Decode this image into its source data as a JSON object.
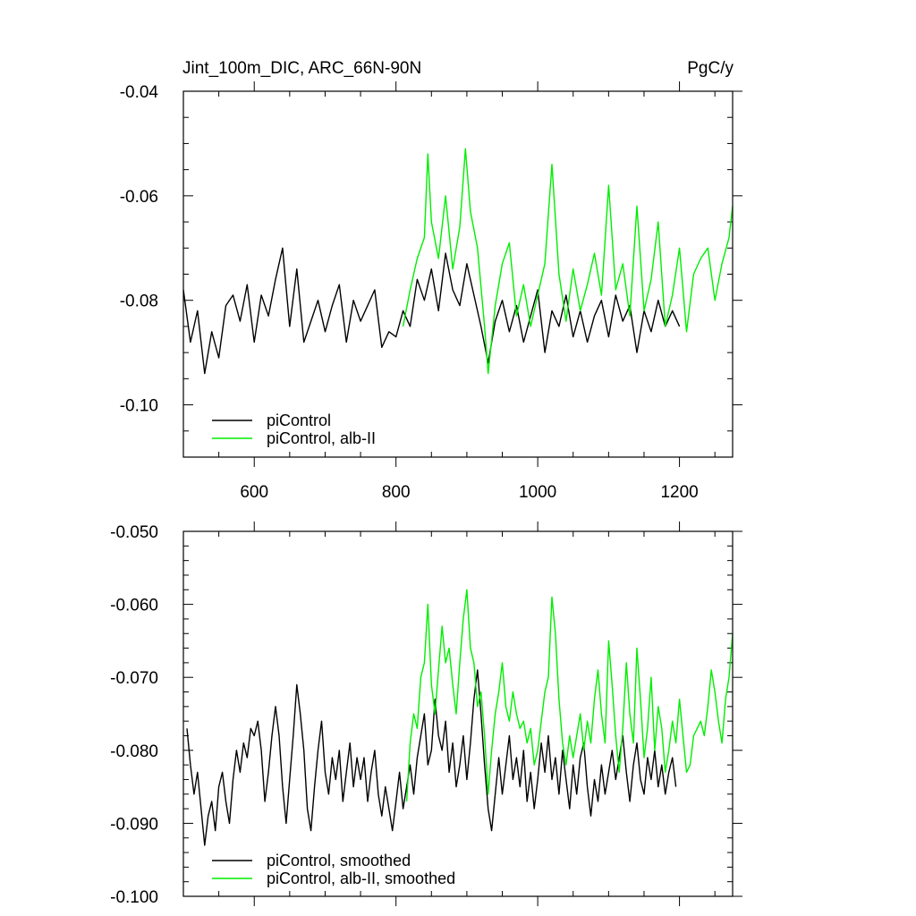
{
  "chart_data": [
    {
      "type": "line",
      "title_left": "Jint_100m_DIC, ARC_66N-90N",
      "title_right": "PgC/y",
      "xlim": [
        500,
        1275
      ],
      "ylim": [
        -0.11,
        -0.04
      ],
      "xticks": [
        600,
        800,
        1000,
        1200
      ],
      "xtick_labels": [
        "600",
        "800",
        "1000",
        "1200"
      ],
      "yticks": [
        -0.1,
        -0.08,
        -0.06,
        -0.04
      ],
      "ytick_labels": [
        "-0.10",
        "-0.08",
        "-0.06",
        "-0.04"
      ],
      "x_minor_step": 50,
      "y_minor_step": 0.005,
      "show_xtick_labels": true,
      "grid": false,
      "legend_position": "bottom-left",
      "series": [
        {
          "name": "piControl",
          "color": "#000000",
          "x": [
            500,
            510,
            520,
            530,
            540,
            550,
            560,
            570,
            580,
            590,
            600,
            610,
            620,
            630,
            640,
            650,
            660,
            670,
            680,
            690,
            700,
            710,
            720,
            730,
            740,
            750,
            760,
            770,
            780,
            790,
            800,
            810,
            820,
            830,
            840,
            850,
            860,
            870,
            880,
            890,
            900,
            910,
            920,
            930,
            940,
            950,
            960,
            970,
            980,
            990,
            1000,
            1010,
            1020,
            1030,
            1040,
            1050,
            1060,
            1070,
            1080,
            1090,
            1100,
            1110,
            1120,
            1130,
            1140,
            1150,
            1160,
            1170,
            1180,
            1190,
            1200
          ],
          "y": [
            -0.078,
            -0.088,
            -0.082,
            -0.094,
            -0.086,
            -0.091,
            -0.081,
            -0.079,
            -0.084,
            -0.077,
            -0.088,
            -0.079,
            -0.083,
            -0.076,
            -0.07,
            -0.085,
            -0.074,
            -0.088,
            -0.084,
            -0.08,
            -0.086,
            -0.081,
            -0.077,
            -0.088,
            -0.08,
            -0.084,
            -0.081,
            -0.078,
            -0.089,
            -0.086,
            -0.087,
            -0.082,
            -0.085,
            -0.076,
            -0.08,
            -0.074,
            -0.082,
            -0.071,
            -0.078,
            -0.081,
            -0.073,
            -0.079,
            -0.085,
            -0.092,
            -0.084,
            -0.08,
            -0.086,
            -0.081,
            -0.088,
            -0.083,
            -0.078,
            -0.09,
            -0.082,
            -0.085,
            -0.079,
            -0.087,
            -0.082,
            -0.088,
            -0.083,
            -0.08,
            -0.087,
            -0.079,
            -0.084,
            -0.081,
            -0.09,
            -0.082,
            -0.086,
            -0.08,
            -0.085,
            -0.082,
            -0.085
          ]
        },
        {
          "name": "piControl, alb-II",
          "color": "#00ee00",
          "x": [
            810,
            820,
            830,
            840,
            845,
            850,
            860,
            870,
            880,
            890,
            898,
            905,
            915,
            925,
            930,
            940,
            950,
            960,
            970,
            980,
            990,
            1000,
            1010,
            1020,
            1030,
            1040,
            1050,
            1060,
            1070,
            1080,
            1090,
            1100,
            1110,
            1120,
            1130,
            1140,
            1150,
            1160,
            1170,
            1180,
            1190,
            1200,
            1210,
            1220,
            1230,
            1240,
            1250,
            1260,
            1270,
            1275
          ],
          "y": [
            -0.085,
            -0.078,
            -0.072,
            -0.068,
            -0.052,
            -0.065,
            -0.072,
            -0.06,
            -0.074,
            -0.066,
            -0.051,
            -0.063,
            -0.07,
            -0.085,
            -0.094,
            -0.081,
            -0.073,
            -0.069,
            -0.083,
            -0.077,
            -0.085,
            -0.079,
            -0.073,
            -0.054,
            -0.075,
            -0.084,
            -0.074,
            -0.082,
            -0.077,
            -0.071,
            -0.079,
            -0.058,
            -0.078,
            -0.073,
            -0.083,
            -0.062,
            -0.082,
            -0.076,
            -0.065,
            -0.085,
            -0.079,
            -0.07,
            -0.086,
            -0.075,
            -0.072,
            -0.07,
            -0.08,
            -0.073,
            -0.068,
            -0.062
          ]
        }
      ]
    },
    {
      "type": "line",
      "xlim": [
        500,
        1275
      ],
      "ylim": [
        -0.1,
        -0.05
      ],
      "xticks": [
        600,
        800,
        1000,
        1200
      ],
      "xtick_labels": [],
      "yticks": [
        -0.1,
        -0.09,
        -0.08,
        -0.07,
        -0.06,
        -0.05
      ],
      "ytick_labels": [
        "-0.100",
        "-0.090",
        "-0.080",
        "-0.070",
        "-0.060",
        "-0.050"
      ],
      "x_minor_step": 50,
      "y_minor_step": 0.002,
      "show_xtick_labels": false,
      "grid": false,
      "legend_position": "bottom-left",
      "series": [
        {
          "name": "piControl, smoothed",
          "color": "#000000",
          "x": [
            505,
            510,
            515,
            520,
            525,
            530,
            535,
            540,
            545,
            550,
            555,
            560,
            565,
            570,
            575,
            580,
            585,
            590,
            595,
            600,
            605,
            610,
            615,
            620,
            625,
            630,
            635,
            640,
            645,
            650,
            655,
            660,
            665,
            670,
            675,
            680,
            685,
            690,
            695,
            700,
            705,
            710,
            715,
            720,
            725,
            730,
            735,
            740,
            745,
            750,
            755,
            760,
            765,
            770,
            775,
            780,
            785,
            790,
            795,
            800,
            805,
            810,
            815,
            820,
            825,
            830,
            835,
            840,
            845,
            850,
            855,
            860,
            865,
            870,
            875,
            880,
            885,
            890,
            895,
            900,
            905,
            910,
            915,
            920,
            925,
            930,
            935,
            940,
            945,
            950,
            955,
            960,
            965,
            970,
            975,
            980,
            985,
            990,
            995,
            1000,
            1005,
            1010,
            1015,
            1020,
            1025,
            1030,
            1035,
            1040,
            1045,
            1050,
            1055,
            1060,
            1065,
            1070,
            1075,
            1080,
            1085,
            1090,
            1095,
            1100,
            1105,
            1110,
            1115,
            1120,
            1125,
            1130,
            1135,
            1140,
            1145,
            1150,
            1155,
            1160,
            1165,
            1170,
            1175,
            1180,
            1185,
            1190,
            1195
          ],
          "y": [
            -0.077,
            -0.082,
            -0.086,
            -0.083,
            -0.088,
            -0.093,
            -0.089,
            -0.087,
            -0.091,
            -0.085,
            -0.083,
            -0.087,
            -0.09,
            -0.084,
            -0.08,
            -0.083,
            -0.079,
            -0.081,
            -0.077,
            -0.078,
            -0.076,
            -0.08,
            -0.087,
            -0.083,
            -0.078,
            -0.074,
            -0.078,
            -0.085,
            -0.09,
            -0.084,
            -0.078,
            -0.071,
            -0.075,
            -0.08,
            -0.088,
            -0.091,
            -0.085,
            -0.08,
            -0.076,
            -0.083,
            -0.086,
            -0.081,
            -0.084,
            -0.08,
            -0.087,
            -0.083,
            -0.079,
            -0.085,
            -0.081,
            -0.084,
            -0.081,
            -0.087,
            -0.083,
            -0.08,
            -0.086,
            -0.089,
            -0.085,
            -0.088,
            -0.091,
            -0.087,
            -0.083,
            -0.088,
            -0.085,
            -0.082,
            -0.086,
            -0.081,
            -0.078,
            -0.075,
            -0.082,
            -0.08,
            -0.073,
            -0.078,
            -0.08,
            -0.076,
            -0.083,
            -0.079,
            -0.085,
            -0.082,
            -0.078,
            -0.084,
            -0.079,
            -0.073,
            -0.069,
            -0.075,
            -0.082,
            -0.088,
            -0.091,
            -0.086,
            -0.081,
            -0.086,
            -0.082,
            -0.078,
            -0.084,
            -0.081,
            -0.085,
            -0.08,
            -0.087,
            -0.083,
            -0.088,
            -0.084,
            -0.079,
            -0.083,
            -0.078,
            -0.084,
            -0.081,
            -0.086,
            -0.08,
            -0.084,
            -0.088,
            -0.082,
            -0.086,
            -0.081,
            -0.079,
            -0.085,
            -0.089,
            -0.084,
            -0.087,
            -0.082,
            -0.086,
            -0.083,
            -0.08,
            -0.084,
            -0.081,
            -0.078,
            -0.083,
            -0.087,
            -0.082,
            -0.079,
            -0.084,
            -0.086,
            -0.081,
            -0.084,
            -0.08,
            -0.085,
            -0.082,
            -0.086,
            -0.083,
            -0.081,
            -0.085
          ]
        },
        {
          "name": "piControl, alb-II, smoothed",
          "color": "#00ee00",
          "x": [
            815,
            820,
            825,
            830,
            835,
            840,
            845,
            850,
            855,
            860,
            865,
            870,
            875,
            880,
            885,
            890,
            895,
            900,
            905,
            910,
            915,
            920,
            925,
            930,
            935,
            940,
            945,
            950,
            955,
            960,
            965,
            970,
            975,
            980,
            985,
            990,
            995,
            1000,
            1005,
            1010,
            1015,
            1020,
            1025,
            1030,
            1035,
            1040,
            1045,
            1050,
            1055,
            1060,
            1065,
            1070,
            1075,
            1080,
            1085,
            1090,
            1095,
            1100,
            1105,
            1110,
            1115,
            1120,
            1125,
            1130,
            1135,
            1140,
            1145,
            1150,
            1155,
            1160,
            1165,
            1170,
            1175,
            1180,
            1185,
            1190,
            1195,
            1200,
            1205,
            1210,
            1215,
            1220,
            1225,
            1230,
            1235,
            1240,
            1245,
            1250,
            1255,
            1260,
            1265,
            1270,
            1275
          ],
          "y": [
            -0.087,
            -0.079,
            -0.075,
            -0.077,
            -0.07,
            -0.068,
            -0.06,
            -0.071,
            -0.075,
            -0.069,
            -0.063,
            -0.068,
            -0.066,
            -0.071,
            -0.075,
            -0.068,
            -0.062,
            -0.058,
            -0.066,
            -0.068,
            -0.074,
            -0.072,
            -0.078,
            -0.086,
            -0.08,
            -0.075,
            -0.072,
            -0.068,
            -0.074,
            -0.076,
            -0.072,
            -0.075,
            -0.077,
            -0.076,
            -0.079,
            -0.077,
            -0.082,
            -0.08,
            -0.076,
            -0.072,
            -0.07,
            -0.059,
            -0.064,
            -0.073,
            -0.079,
            -0.082,
            -0.078,
            -0.081,
            -0.078,
            -0.075,
            -0.08,
            -0.076,
            -0.079,
            -0.073,
            -0.069,
            -0.075,
            -0.079,
            -0.065,
            -0.071,
            -0.078,
            -0.083,
            -0.077,
            -0.068,
            -0.075,
            -0.079,
            -0.066,
            -0.073,
            -0.081,
            -0.077,
            -0.07,
            -0.08,
            -0.074,
            -0.077,
            -0.083,
            -0.08,
            -0.076,
            -0.079,
            -0.073,
            -0.078,
            -0.083,
            -0.082,
            -0.078,
            -0.077,
            -0.076,
            -0.078,
            -0.074,
            -0.069,
            -0.072,
            -0.076,
            -0.079,
            -0.073,
            -0.07,
            -0.064
          ]
        }
      ]
    }
  ]
}
